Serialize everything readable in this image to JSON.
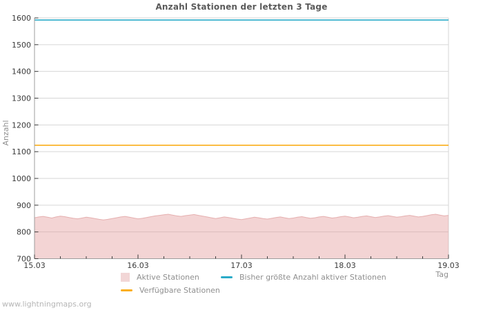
{
  "title": "Anzahl Stationen der letzten 3 Tage",
  "watermark": "www.lightningmaps.org",
  "colors": {
    "active_fill": "rgba(228,160,160,0.45)",
    "active_edge": "#e5afaf",
    "max_line": "#2aabc8",
    "available_line": "#fbae17",
    "grid": "#d6d6d6",
    "axis": "#9c9c9c",
    "tick": "#3a3a3a",
    "tick_label": "#3a3a3a",
    "muted_text": "#8f8f8f",
    "title_text": "#5a5a5a",
    "watermark_text": "#b6b6b6"
  },
  "chart_data": {
    "type": "area",
    "title": "Anzahl Stationen der letzten 3 Tage",
    "xlabel": "Tag",
    "ylabel": "Anzahl",
    "ylim": [
      700,
      1600
    ],
    "y_ticks": [
      700,
      800,
      900,
      1000,
      1100,
      1200,
      1300,
      1400,
      1500,
      1600
    ],
    "x_ticks": [
      "15.03",
      "16.03",
      "17.03",
      "18.03",
      "19.03"
    ],
    "x_minor_per_major": 4,
    "grid": "horizontal",
    "legend_position": "bottom",
    "series": [
      {
        "name": "Aktive Stationen",
        "type": "area",
        "values": [
          853,
          856,
          858,
          855,
          852,
          856,
          859,
          857,
          854,
          851,
          849,
          852,
          855,
          853,
          850,
          847,
          845,
          847,
          850,
          853,
          856,
          858,
          855,
          852,
          849,
          851,
          854,
          857,
          860,
          862,
          864,
          866,
          863,
          860,
          858,
          861,
          863,
          865,
          862,
          859,
          856,
          853,
          850,
          853,
          856,
          854,
          851,
          848,
          846,
          849,
          852,
          855,
          853,
          850,
          848,
          851,
          854,
          856,
          853,
          850,
          852,
          855,
          857,
          854,
          851,
          853,
          856,
          858,
          855,
          852,
          854,
          857,
          859,
          856,
          853,
          855,
          858,
          860,
          857,
          854,
          856,
          859,
          861,
          858,
          855,
          857,
          860,
          862,
          859,
          856,
          858,
          861,
          864,
          866,
          863,
          860,
          862
        ]
      },
      {
        "name": "Bisher größte Anzahl aktiver Stationen",
        "type": "line",
        "constant": 1592
      },
      {
        "name": "Verfügbare Stationen",
        "type": "line",
        "constant": 1124
      }
    ]
  },
  "legend": {
    "items": [
      {
        "label": "Aktive Stationen",
        "swatch": "square",
        "color": "#f2d6d6"
      },
      {
        "label": "Bisher größte Anzahl aktiver Stationen",
        "swatch": "line",
        "color": "#2aabc8"
      },
      {
        "label": "Verfügbare Stationen",
        "swatch": "line",
        "color": "#fbae17"
      }
    ]
  }
}
